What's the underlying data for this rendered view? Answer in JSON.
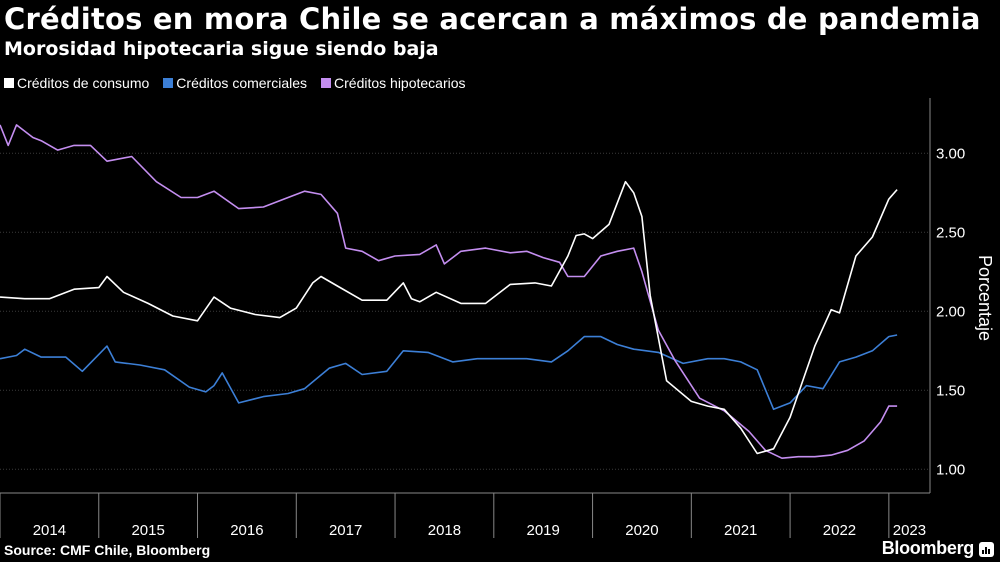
{
  "title": "Créditos en mora Chile se acercan a máximos de pandemia",
  "subtitle": "Morosidad hipotecaria sigue siendo baja",
  "source": "Source: CMF Chile, Bloomberg",
  "brand": "Bloomberg",
  "colors": {
    "background": "#000000",
    "consumo": "#ffffff",
    "comerciales": "#3c7fd6",
    "hipotecarios": "#c48ef0",
    "grid": "#555555"
  },
  "chart_data": {
    "type": "line",
    "title": "Créditos en mora Chile se acercan a máximos de pandemia",
    "subtitle": "Morosidad hipotecaria sigue siendo baja",
    "xlabel": "",
    "ylabel": "Porcentaje",
    "ylim": [
      0.85,
      3.35
    ],
    "xlim": [
      "2014-01",
      "2023-06"
    ],
    "yticks": [
      "1.00",
      "1.50",
      "2.00",
      "2.50",
      "3.00"
    ],
    "xticks": [
      "2014",
      "2015",
      "2016",
      "2017",
      "2018",
      "2019",
      "2020",
      "2021",
      "2022",
      "2023"
    ],
    "grid": true,
    "legend_position": "top-left",
    "series": [
      {
        "name": "Créditos de consumo",
        "color": "#ffffff",
        "points": [
          [
            "2014-01",
            2.09
          ],
          [
            "2014-04",
            2.08
          ],
          [
            "2014-07",
            2.08
          ],
          [
            "2014-10",
            2.14
          ],
          [
            "2015-01",
            2.15
          ],
          [
            "2015-02",
            2.22
          ],
          [
            "2015-04",
            2.12
          ],
          [
            "2015-07",
            2.05
          ],
          [
            "2015-10",
            1.97
          ],
          [
            "2016-01",
            1.94
          ],
          [
            "2016-03",
            2.09
          ],
          [
            "2016-05",
            2.02
          ],
          [
            "2016-08",
            1.98
          ],
          [
            "2016-11",
            1.96
          ],
          [
            "2017-01",
            2.02
          ],
          [
            "2017-03",
            2.18
          ],
          [
            "2017-04",
            2.22
          ],
          [
            "2017-06",
            2.16
          ],
          [
            "2017-09",
            2.07
          ],
          [
            "2017-12",
            2.07
          ],
          [
            "2018-02",
            2.18
          ],
          [
            "2018-03",
            2.08
          ],
          [
            "2018-04",
            2.06
          ],
          [
            "2018-06",
            2.12
          ],
          [
            "2018-09",
            2.05
          ],
          [
            "2018-12",
            2.05
          ],
          [
            "2019-03",
            2.17
          ],
          [
            "2019-06",
            2.18
          ],
          [
            "2019-08",
            2.16
          ],
          [
            "2019-10",
            2.35
          ],
          [
            "2019-11",
            2.48
          ],
          [
            "2019-12",
            2.49
          ],
          [
            "2020-01",
            2.46
          ],
          [
            "2020-03",
            2.55
          ],
          [
            "2020-05",
            2.82
          ],
          [
            "2020-06",
            2.75
          ],
          [
            "2020-07",
            2.6
          ],
          [
            "2020-08",
            2.1
          ],
          [
            "2020-10",
            1.56
          ],
          [
            "2021-01",
            1.43
          ],
          [
            "2021-03",
            1.4
          ],
          [
            "2021-05",
            1.38
          ],
          [
            "2021-07",
            1.26
          ],
          [
            "2021-09",
            1.1
          ],
          [
            "2021-11",
            1.13
          ],
          [
            "2022-01",
            1.33
          ],
          [
            "2022-04",
            1.78
          ],
          [
            "2022-06",
            2.01
          ],
          [
            "2022-07",
            1.99
          ],
          [
            "2022-09",
            2.35
          ],
          [
            "2022-11",
            2.47
          ],
          [
            "2023-01",
            2.71
          ],
          [
            "2023-02",
            2.77
          ]
        ]
      },
      {
        "name": "Créditos comerciales",
        "color": "#3c7fd6",
        "points": [
          [
            "2014-01",
            1.7
          ],
          [
            "2014-03",
            1.72
          ],
          [
            "2014-04",
            1.76
          ],
          [
            "2014-06",
            1.71
          ],
          [
            "2014-09",
            1.71
          ],
          [
            "2014-11",
            1.62
          ],
          [
            "2015-02",
            1.78
          ],
          [
            "2015-03",
            1.68
          ],
          [
            "2015-06",
            1.66
          ],
          [
            "2015-09",
            1.63
          ],
          [
            "2015-12",
            1.52
          ],
          [
            "2016-02",
            1.49
          ],
          [
            "2016-03",
            1.53
          ],
          [
            "2016-04",
            1.61
          ],
          [
            "2016-06",
            1.42
          ],
          [
            "2016-09",
            1.46
          ],
          [
            "2016-12",
            1.48
          ],
          [
            "2017-02",
            1.51
          ],
          [
            "2017-05",
            1.64
          ],
          [
            "2017-07",
            1.67
          ],
          [
            "2017-09",
            1.6
          ],
          [
            "2017-12",
            1.62
          ],
          [
            "2018-02",
            1.75
          ],
          [
            "2018-05",
            1.74
          ],
          [
            "2018-08",
            1.68
          ],
          [
            "2018-11",
            1.7
          ],
          [
            "2019-02",
            1.7
          ],
          [
            "2019-05",
            1.7
          ],
          [
            "2019-08",
            1.68
          ],
          [
            "2019-10",
            1.75
          ],
          [
            "2019-12",
            1.84
          ],
          [
            "2020-02",
            1.84
          ],
          [
            "2020-04",
            1.79
          ],
          [
            "2020-06",
            1.76
          ],
          [
            "2020-09",
            1.74
          ],
          [
            "2020-12",
            1.67
          ],
          [
            "2021-03",
            1.7
          ],
          [
            "2021-05",
            1.7
          ],
          [
            "2021-07",
            1.68
          ],
          [
            "2021-09",
            1.63
          ],
          [
            "2021-11",
            1.38
          ],
          [
            "2022-01",
            1.42
          ],
          [
            "2022-03",
            1.53
          ],
          [
            "2022-05",
            1.51
          ],
          [
            "2022-07",
            1.68
          ],
          [
            "2022-09",
            1.71
          ],
          [
            "2022-11",
            1.75
          ],
          [
            "2023-01",
            1.84
          ],
          [
            "2023-02",
            1.85
          ]
        ]
      },
      {
        "name": "Créditos hipotecarios",
        "color": "#c48ef0",
        "points": [
          [
            "2014-01",
            3.18
          ],
          [
            "2014-02",
            3.05
          ],
          [
            "2014-03",
            3.18
          ],
          [
            "2014-05",
            3.1
          ],
          [
            "2014-06",
            3.08
          ],
          [
            "2014-08",
            3.02
          ],
          [
            "2014-10",
            3.05
          ],
          [
            "2014-12",
            3.05
          ],
          [
            "2015-02",
            2.95
          ],
          [
            "2015-05",
            2.98
          ],
          [
            "2015-08",
            2.82
          ],
          [
            "2015-11",
            2.72
          ],
          [
            "2016-01",
            2.72
          ],
          [
            "2016-03",
            2.76
          ],
          [
            "2016-06",
            2.65
          ],
          [
            "2016-09",
            2.66
          ],
          [
            "2016-12",
            2.72
          ],
          [
            "2017-02",
            2.76
          ],
          [
            "2017-04",
            2.74
          ],
          [
            "2017-06",
            2.62
          ],
          [
            "2017-07",
            2.4
          ],
          [
            "2017-09",
            2.38
          ],
          [
            "2017-11",
            2.32
          ],
          [
            "2018-01",
            2.35
          ],
          [
            "2018-04",
            2.36
          ],
          [
            "2018-06",
            2.42
          ],
          [
            "2018-07",
            2.3
          ],
          [
            "2018-09",
            2.38
          ],
          [
            "2018-12",
            2.4
          ],
          [
            "2019-03",
            2.37
          ],
          [
            "2019-05",
            2.38
          ],
          [
            "2019-07",
            2.34
          ],
          [
            "2019-09",
            2.31
          ],
          [
            "2019-10",
            2.22
          ],
          [
            "2019-12",
            2.22
          ],
          [
            "2020-02",
            2.35
          ],
          [
            "2020-04",
            2.38
          ],
          [
            "2020-06",
            2.4
          ],
          [
            "2020-07",
            2.25
          ],
          [
            "2020-09",
            1.88
          ],
          [
            "2020-11",
            1.69
          ],
          [
            "2021-02",
            1.45
          ],
          [
            "2021-05",
            1.37
          ],
          [
            "2021-08",
            1.24
          ],
          [
            "2021-10",
            1.12
          ],
          [
            "2021-12",
            1.07
          ],
          [
            "2022-02",
            1.08
          ],
          [
            "2022-04",
            1.08
          ],
          [
            "2022-06",
            1.09
          ],
          [
            "2022-08",
            1.12
          ],
          [
            "2022-10",
            1.18
          ],
          [
            "2022-12",
            1.3
          ],
          [
            "2023-01",
            1.4
          ],
          [
            "2023-02",
            1.4
          ]
        ]
      }
    ]
  }
}
